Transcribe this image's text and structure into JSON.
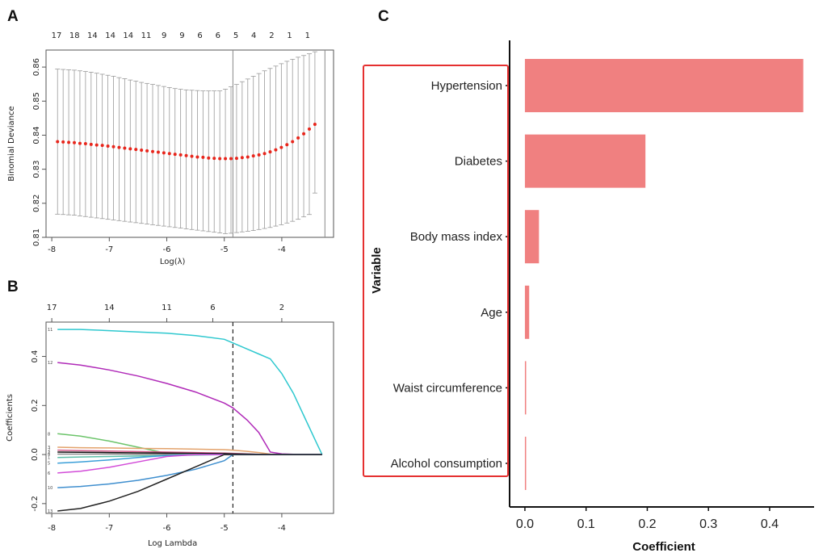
{
  "panels": {
    "a": "A",
    "b": "B",
    "c": "C"
  },
  "chart_data": [
    {
      "type": "scatter",
      "panel": "A",
      "xlabel": "Log(λ)",
      "ylabel": "Binomial Deviance",
      "xticks": [
        "-8",
        "-7",
        "-6",
        "-5",
        "-4"
      ],
      "yticks": [
        "0.81",
        "0.82",
        "0.83",
        "0.84",
        "0.85",
        "0.86"
      ],
      "xlim": [
        -8.1,
        -3.1
      ],
      "ylim": [
        0.81,
        0.865
      ],
      "top_axis": [
        "17",
        "18",
        "14",
        "14",
        "14",
        "11",
        "9",
        "9",
        "6",
        "6",
        "5",
        "4",
        "2",
        "1",
        "1"
      ],
      "vlines": [
        -4.85,
        -3.25
      ],
      "lambda_start": -7.9,
      "lambda_step": 0.0973,
      "cv_mean": [
        0.8381,
        0.838,
        0.8379,
        0.8378,
        0.8376,
        0.8375,
        0.8373,
        0.8371,
        0.837,
        0.8368,
        0.8366,
        0.8364,
        0.8362,
        0.836,
        0.8358,
        0.8356,
        0.8354,
        0.8352,
        0.835,
        0.8348,
        0.8346,
        0.8344,
        0.8342,
        0.834,
        0.8338,
        0.8336,
        0.8335,
        0.8333,
        0.8332,
        0.8331,
        0.8331,
        0.8331,
        0.8332,
        0.8334,
        0.8336,
        0.8339,
        0.8342,
        0.8346,
        0.8351,
        0.8357,
        0.8364,
        0.8372,
        0.8381,
        0.8392,
        0.8404,
        0.8418,
        0.8432
      ],
      "cv_upper": [
        0.8594,
        0.8593,
        0.8592,
        0.8591,
        0.8589,
        0.8587,
        0.8585,
        0.8582,
        0.8579,
        0.8576,
        0.8573,
        0.8569,
        0.8566,
        0.8562,
        0.8559,
        0.8555,
        0.8552,
        0.8549,
        0.8546,
        0.8543,
        0.854,
        0.8537,
        0.8535,
        0.8533,
        0.8532,
        0.8531,
        0.853,
        0.853,
        0.853,
        0.853,
        0.8535,
        0.8542,
        0.8549,
        0.8557,
        0.8565,
        0.8573,
        0.8581,
        0.8589,
        0.8596,
        0.8603,
        0.861,
        0.8617,
        0.8623,
        0.8629,
        0.8634,
        0.8639,
        0.8645
      ],
      "cv_lower": [
        0.8168,
        0.8167,
        0.8166,
        0.8165,
        0.8163,
        0.8161,
        0.8159,
        0.8157,
        0.8155,
        0.8153,
        0.8151,
        0.8149,
        0.8147,
        0.8145,
        0.8143,
        0.8141,
        0.8139,
        0.8137,
        0.8135,
        0.8133,
        0.8131,
        0.8129,
        0.8127,
        0.8125,
        0.8123,
        0.8121,
        0.8119,
        0.8117,
        0.8115,
        0.8113,
        0.8111,
        0.8112,
        0.8114,
        0.8116,
        0.8118,
        0.812,
        0.8123,
        0.8126,
        0.8129,
        0.8133,
        0.8137,
        0.8142,
        0.8147,
        0.8153,
        0.816,
        0.8167,
        0.823
      ],
      "colors": {
        "points": "#e8261c",
        "bars": "#9a9a9a"
      }
    },
    {
      "type": "line",
      "panel": "B",
      "xlabel": "Log Lambda",
      "ylabel": "Coefficients",
      "xticks": [
        "-8",
        "-7",
        "-6",
        "-5",
        "-4"
      ],
      "yticks": [
        "-0.2",
        "0.0",
        "0.2",
        "0.4"
      ],
      "xlim": [
        -8.1,
        -3.1
      ],
      "ylim": [
        -0.24,
        0.54
      ],
      "top_axis": [
        "17",
        "14",
        "11",
        "6",
        "2"
      ],
      "dashed_vline": -4.85,
      "x": [
        -7.9,
        -7.5,
        -7.0,
        -6.5,
        -6.0,
        -5.5,
        -5.0,
        -4.85,
        -4.6,
        -4.4,
        -4.2,
        -4.0,
        -3.8,
        -3.6,
        -3.4,
        -3.3
      ],
      "series": [
        {
          "color": "#2ec8cf",
          "label": "11",
          "values": [
            0.51,
            0.51,
            0.505,
            0.5,
            0.495,
            0.485,
            0.47,
            0.455,
            0.43,
            0.41,
            0.39,
            0.33,
            0.25,
            0.15,
            0.05,
            0.0
          ]
        },
        {
          "color": "#b02ab8",
          "label": "12",
          "values": [
            0.375,
            0.365,
            0.345,
            0.32,
            0.29,
            0.255,
            0.21,
            0.19,
            0.14,
            0.09,
            0.01,
            0.003,
            0.001,
            0.0,
            0.0,
            0.0
          ]
        },
        {
          "color": "#6cc46a",
          "label": "8",
          "values": [
            0.085,
            0.075,
            0.055,
            0.03,
            0.005,
            0.0,
            0.0,
            0.0,
            0.0,
            0.0,
            0.0,
            0.0,
            0.0,
            0.0,
            0.0,
            0.0
          ]
        },
        {
          "color": "#e3a26b",
          "label": "3",
          "values": [
            0.03,
            0.028,
            0.027,
            0.025,
            0.024,
            0.022,
            0.02,
            0.018,
            0.013,
            0.008,
            0.002,
            0.0,
            0.0,
            0.0,
            0.0,
            0.0
          ]
        },
        {
          "color": "#d45b8a",
          "label": "7",
          "values": [
            0.018,
            0.016,
            0.014,
            0.012,
            0.01,
            0.008,
            0.006,
            0.005,
            0.003,
            0.001,
            0.0,
            0.0,
            0.0,
            0.0,
            0.0,
            0.0
          ]
        },
        {
          "color": "#111111",
          "label": "2",
          "values": [
            0.01,
            0.009,
            0.008,
            0.007,
            0.006,
            0.005,
            0.004,
            0.003,
            0.002,
            0.001,
            0.0,
            0.0,
            0.0,
            0.0,
            0.0,
            0.0
          ]
        },
        {
          "color": "#8a8a8a",
          "label": "4",
          "values": [
            0.002,
            0.002,
            0.002,
            0.001,
            0.001,
            0.001,
            0.0,
            0.0,
            0.0,
            0.0,
            0.0,
            0.0,
            0.0,
            0.0,
            0.0,
            0.0
          ]
        },
        {
          "color": "#5cc0a8",
          "label": "1",
          "values": [
            -0.012,
            -0.01,
            -0.008,
            -0.006,
            -0.004,
            -0.002,
            0.0,
            0.0,
            0.0,
            0.0,
            0.0,
            0.0,
            0.0,
            0.0,
            0.0,
            0.0
          ]
        },
        {
          "color": "#3b9fd8",
          "label": "5",
          "values": [
            -0.035,
            -0.03,
            -0.022,
            -0.012,
            -0.004,
            0.0,
            0.0,
            0.0,
            0.0,
            0.0,
            0.0,
            0.0,
            0.0,
            0.0,
            0.0,
            0.0
          ]
        },
        {
          "color": "#d24cd8",
          "label": "6",
          "values": [
            -0.075,
            -0.068,
            -0.052,
            -0.03,
            -0.008,
            0.0,
            0.0,
            0.0,
            0.0,
            0.0,
            0.0,
            0.0,
            0.0,
            0.0,
            0.0,
            0.0
          ]
        },
        {
          "color": "#3f8fcf",
          "label": "10",
          "values": [
            -0.135,
            -0.13,
            -0.12,
            -0.105,
            -0.085,
            -0.06,
            -0.025,
            0.0,
            0.0,
            0.0,
            0.0,
            0.0,
            0.0,
            0.0,
            0.0,
            0.0
          ]
        },
        {
          "color": "#222222",
          "label": "13",
          "values": [
            -0.23,
            -0.22,
            -0.19,
            -0.15,
            -0.1,
            -0.05,
            0.0,
            0.0,
            0.0,
            0.0,
            0.0,
            0.0,
            0.0,
            0.0,
            0.0,
            0.0
          ]
        }
      ]
    },
    {
      "type": "bar",
      "panel": "C",
      "orientation": "horizontal",
      "xlabel": "Coefficient",
      "ylabel": "Variable",
      "categories": [
        "Hypertension",
        "Diabetes",
        "Body mass index",
        "Age",
        "Waist circumference",
        "Alcohol consumption"
      ],
      "values": [
        0.455,
        0.197,
        0.023,
        0.007,
        0.002,
        0.0015
      ],
      "xticks": [
        "0.0",
        "0.1",
        "0.2",
        "0.3",
        "0.4"
      ],
      "xlim": [
        -0.025,
        0.47
      ],
      "colors": {
        "bar": "#f08080",
        "highlight_box": "#e53030"
      }
    }
  ]
}
